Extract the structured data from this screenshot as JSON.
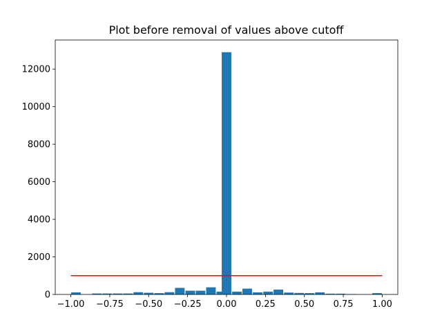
{
  "chart_data": {
    "type": "bar",
    "title": "Plot before removal of values above cutoff",
    "xlabel": "",
    "ylabel": "",
    "xlim": [
      -1.1,
      1.1
    ],
    "ylim": [
      0,
      13550
    ],
    "xticks": [
      -1.0,
      -0.75,
      -0.5,
      -0.25,
      0.0,
      0.25,
      0.5,
      0.75,
      1.0
    ],
    "xtick_labels": [
      "−1.00",
      "−0.75",
      "−0.50",
      "−0.25",
      "0.00",
      "0.25",
      "0.50",
      "0.75",
      "1.00"
    ],
    "yticks": [
      0,
      2000,
      4000,
      6000,
      8000,
      10000,
      12000
    ],
    "ytick_labels": [
      "0",
      "2000",
      "4000",
      "6000",
      "8000",
      "10000",
      "12000"
    ],
    "bar_color": "#1f77b4",
    "bars": [
      {
        "x": -0.967,
        "value": 110
      },
      {
        "x": -0.9,
        "value": 0
      },
      {
        "x": -0.833,
        "value": 50
      },
      {
        "x": -0.767,
        "value": 50
      },
      {
        "x": -0.7,
        "value": 50
      },
      {
        "x": -0.633,
        "value": 50
      },
      {
        "x": -0.567,
        "value": 120
      },
      {
        "x": -0.5,
        "value": 90
      },
      {
        "x": -0.433,
        "value": 70
      },
      {
        "x": -0.367,
        "value": 120
      },
      {
        "x": -0.3,
        "value": 350
      },
      {
        "x": -0.233,
        "value": 200
      },
      {
        "x": -0.167,
        "value": 200
      },
      {
        "x": -0.1,
        "value": 380
      },
      {
        "x": -0.033,
        "value": 150
      },
      {
        "x": 0.0,
        "value": 12900
      },
      {
        "x": 0.067,
        "value": 150
      },
      {
        "x": 0.133,
        "value": 310
      },
      {
        "x": 0.2,
        "value": 110
      },
      {
        "x": 0.267,
        "value": 150
      },
      {
        "x": 0.333,
        "value": 260
      },
      {
        "x": 0.4,
        "value": 100
      },
      {
        "x": 0.467,
        "value": 80
      },
      {
        "x": 0.533,
        "value": 70
      },
      {
        "x": 0.6,
        "value": 110
      },
      {
        "x": 0.667,
        "value": 40
      },
      {
        "x": 0.733,
        "value": 40
      },
      {
        "x": 0.8,
        "value": 20
      },
      {
        "x": 0.867,
        "value": 0
      },
      {
        "x": 0.967,
        "value": 70
      }
    ],
    "bar_width": 0.0617,
    "cutoff_line": {
      "y": 1000,
      "x_from": -1.0,
      "x_to": 1.0,
      "color": "#ff0000"
    }
  }
}
